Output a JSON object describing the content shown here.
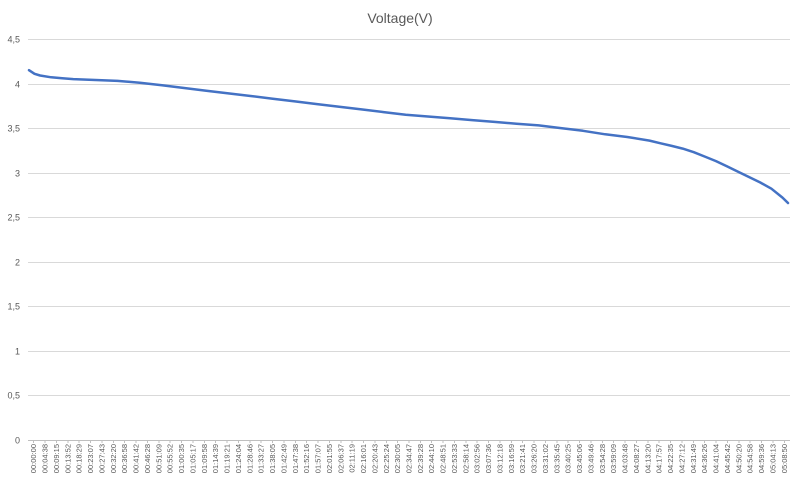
{
  "chart_data": {
    "type": "line",
    "title": "Voltage(V)",
    "xlabel": "",
    "ylabel": "",
    "ylim": [
      0,
      4.5
    ],
    "y_ticks": [
      "0",
      "0,5",
      "1",
      "1,5",
      "2",
      "2,5",
      "3",
      "3,5",
      "4",
      "4,5"
    ],
    "y_tick_values": [
      0,
      0.5,
      1,
      1.5,
      2,
      2.5,
      3,
      3.5,
      4,
      4.5
    ],
    "grid": true,
    "legend": "none",
    "line_color": "#4472c4",
    "x_tick_labels": [
      "00:00:00",
      "00:04:38",
      "00:09:15",
      "00:13:52",
      "00:18:29",
      "00:23:07",
      "00:27:43",
      "00:32:20",
      "00:36:58",
      "00:41:42",
      "00:46:28",
      "00:51:09",
      "00:55:52",
      "01:00:35",
      "01:05:17",
      "01:09:58",
      "01:14:39",
      "01:19:21",
      "01:24:04",
      "01:28:46",
      "01:33:27",
      "01:38:05",
      "01:42:49",
      "01:47:38",
      "01:52:16",
      "01:57:07",
      "02:01:55",
      "02:06:37",
      "02:11:19",
      "02:16:01",
      "02:20:43",
      "02:25:24",
      "02:30:05",
      "02:34:47",
      "02:39:28",
      "02:44:10",
      "02:48:51",
      "02:53:33",
      "02:58:14",
      "03:02:56",
      "03:07:36",
      "03:12:18",
      "03:16:59",
      "03:21:41",
      "03:26:20",
      "03:31:02",
      "03:35:45",
      "03:40:25",
      "03:45:06",
      "03:49:46",
      "03:54:28",
      "03:59:09",
      "04:03:48",
      "04:08:27",
      "04:13:20",
      "04:17:57",
      "04:22:35",
      "04:27:12",
      "04:31:49",
      "04:36:26",
      "04:41:04",
      "04:45:42",
      "04:50:20",
      "04:54:58",
      "04:59:36",
      "05:04:13",
      "05:08:50"
    ],
    "series": [
      {
        "name": "",
        "x": [
          0,
          0.5,
          1,
          2,
          3,
          4,
          6,
          8,
          10,
          12,
          14,
          16,
          18,
          20,
          22,
          24,
          26,
          28,
          30,
          32,
          34,
          36,
          38,
          40,
          42,
          44,
          46,
          48,
          50,
          52,
          54,
          56,
          57,
          58,
          59,
          60,
          61,
          62,
          63,
          64,
          65,
          66,
          67,
          68,
          68.5
        ],
        "values": [
          4.15,
          4.11,
          4.09,
          4.07,
          4.06,
          4.05,
          4.04,
          4.03,
          4.01,
          3.98,
          3.95,
          3.92,
          3.89,
          3.86,
          3.83,
          3.8,
          3.77,
          3.74,
          3.71,
          3.68,
          3.65,
          3.63,
          3.61,
          3.59,
          3.57,
          3.55,
          3.53,
          3.5,
          3.47,
          3.43,
          3.4,
          3.36,
          3.33,
          3.3,
          3.27,
          3.23,
          3.18,
          3.13,
          3.07,
          3.01,
          2.95,
          2.89,
          2.82,
          2.72,
          2.66
        ]
      }
    ]
  }
}
